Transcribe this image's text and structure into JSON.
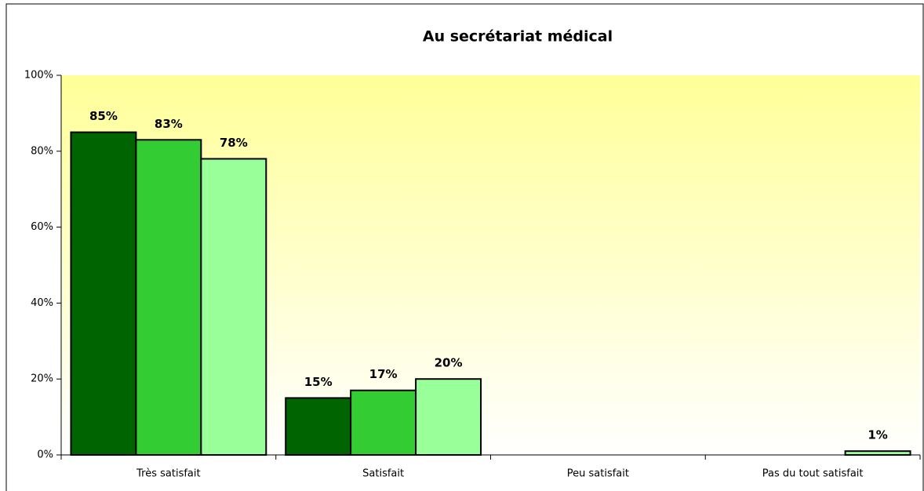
{
  "chart_data": {
    "type": "bar",
    "title": "Au secrétariat médical",
    "categories": [
      "Très satisfait",
      "Satisfait",
      "Peu satisfait",
      "Pas du tout satisfait"
    ],
    "series": [
      {
        "color": "#006400",
        "values": [
          85,
          15,
          null,
          null
        ],
        "value_labels": [
          "85%",
          "15%",
          null,
          null
        ]
      },
      {
        "color": "#33cc33",
        "values": [
          83,
          17,
          null,
          null
        ],
        "value_labels": [
          "83%",
          "17%",
          null,
          null
        ]
      },
      {
        "color": "#99ff99",
        "values": [
          78,
          20,
          null,
          1
        ],
        "value_labels": [
          "78%",
          "20%",
          null,
          "1%"
        ]
      }
    ],
    "ylim": [
      0,
      100
    ],
    "yticks": [
      {
        "value": 0,
        "label": "0%"
      },
      {
        "value": 20,
        "label": "20%"
      },
      {
        "value": 40,
        "label": "40%"
      },
      {
        "value": 60,
        "label": "60%"
      },
      {
        "value": 80,
        "label": "80%"
      },
      {
        "value": 100,
        "label": "100%"
      }
    ]
  }
}
